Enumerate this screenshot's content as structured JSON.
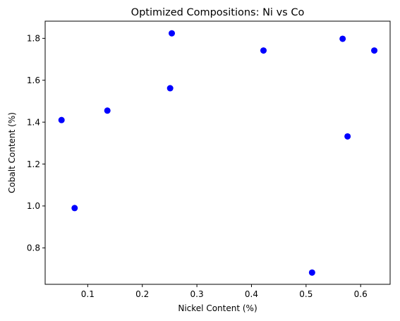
{
  "chart_data": {
    "type": "scatter",
    "title": "Optimized Compositions: Ni vs Co",
    "xlabel": "Nickel Content (%)",
    "ylabel": "Cobalt Content (%)",
    "xlim": [
      0.022,
      0.654
    ],
    "ylim": [
      0.626,
      1.882
    ],
    "xticks": [
      0.1,
      0.2,
      0.3,
      0.4,
      0.5,
      0.6
    ],
    "yticks": [
      0.8,
      1.0,
      1.2,
      1.4,
      1.6,
      1.8
    ],
    "grid": false,
    "marker_color": "#0000ff",
    "series": [
      {
        "x": [
          0.052,
          0.076,
          0.136,
          0.251,
          0.254,
          0.422,
          0.511,
          0.567,
          0.576,
          0.625
        ],
        "y": [
          1.41,
          0.99,
          1.455,
          1.562,
          1.824,
          1.742,
          0.682,
          1.798,
          1.332,
          1.742
        ]
      }
    ]
  }
}
